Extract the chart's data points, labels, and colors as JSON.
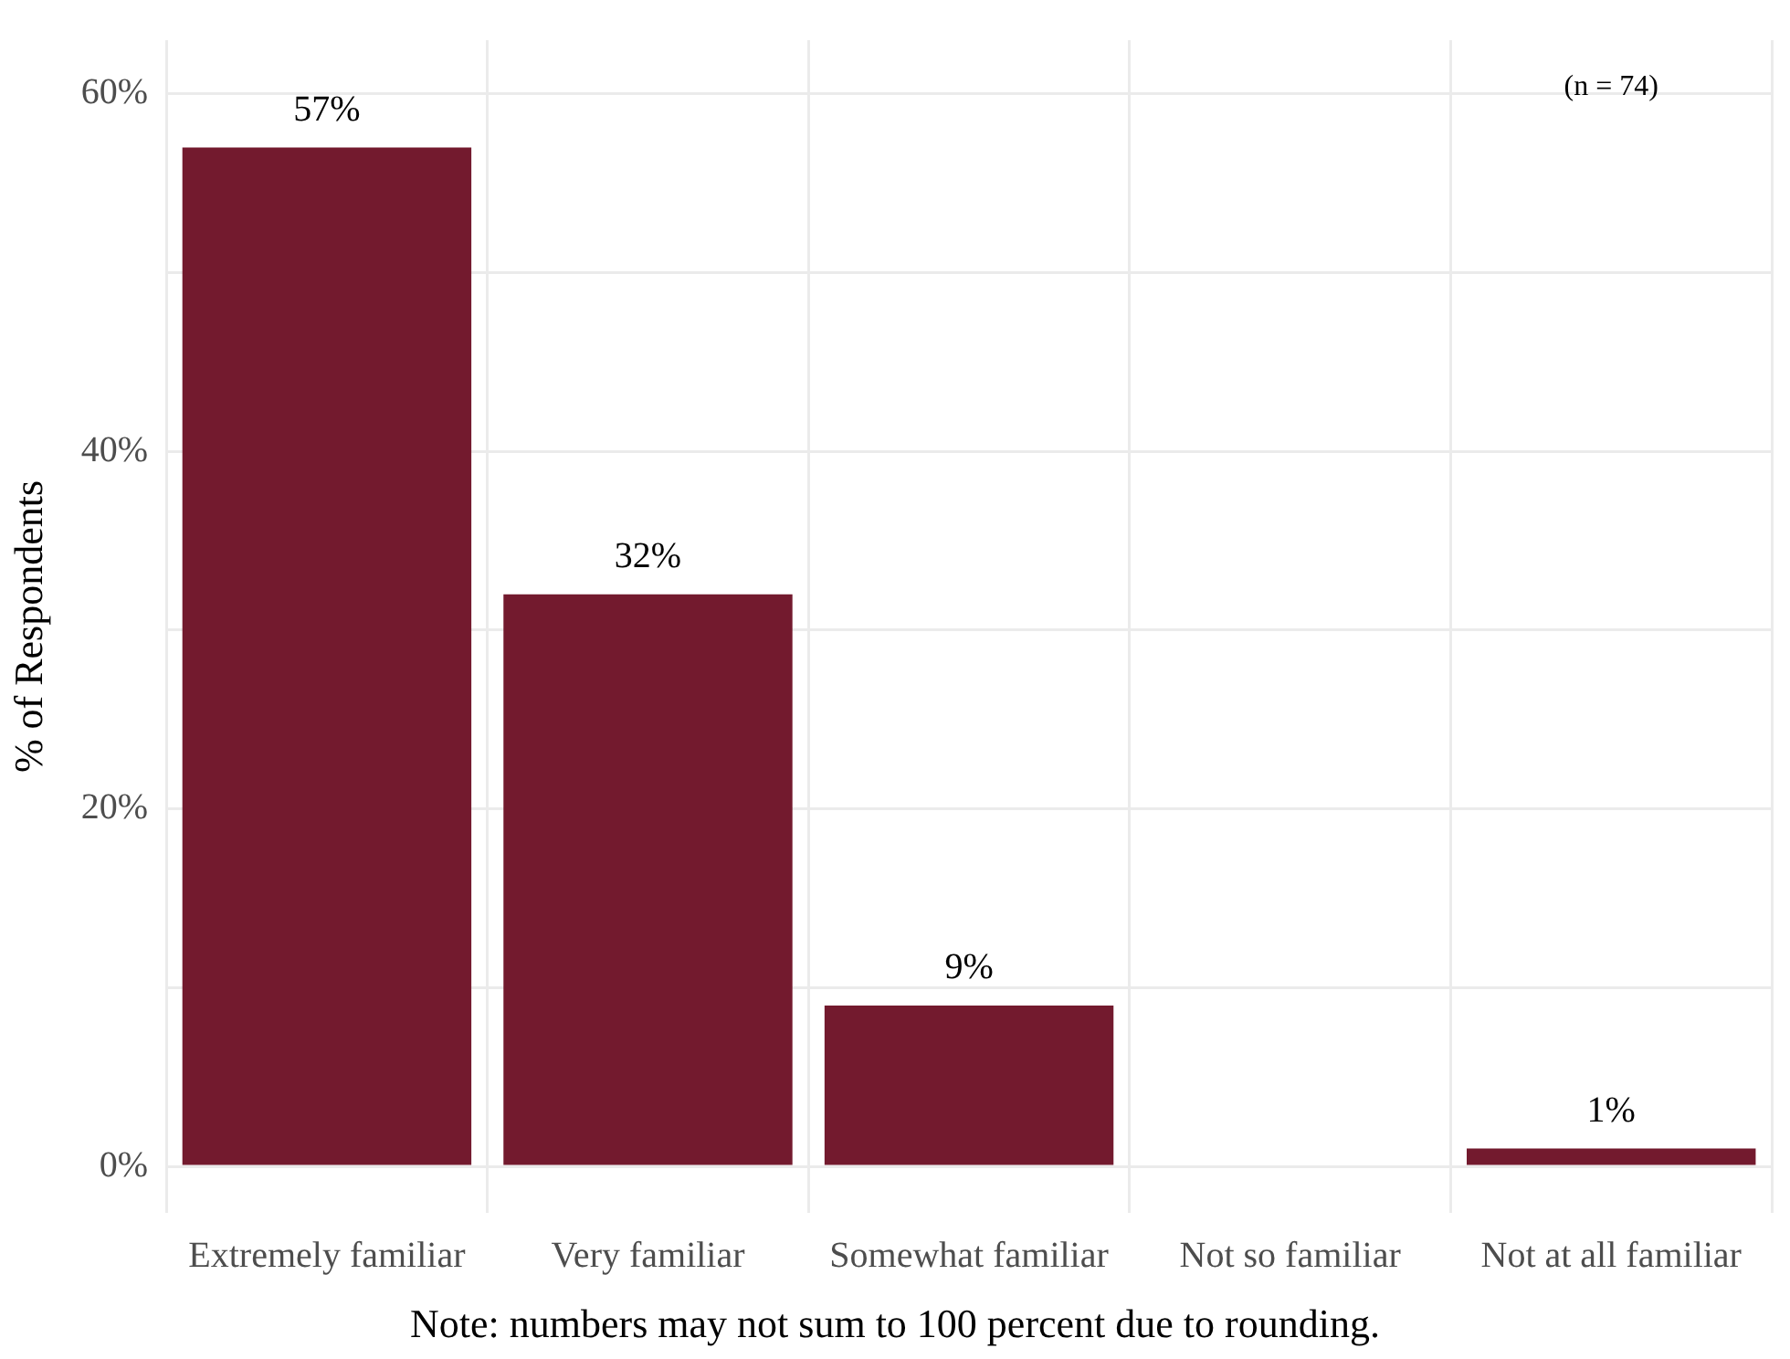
{
  "chart_data": {
    "type": "bar",
    "ylabel": "% of Respondents",
    "categories": [
      "Extremely familiar",
      "Very familiar",
      "Somewhat familiar",
      "Not so familiar",
      "Not at all familiar"
    ],
    "values": [
      57,
      32,
      9,
      0,
      1
    ],
    "color": "#731a2e",
    "value_labels": [
      "57%",
      "32%",
      "9%",
      null,
      "1%"
    ],
    "ylim": [
      -2.6,
      63
    ],
    "yticks": [
      {
        "value": 0,
        "label": "0%"
      },
      {
        "value": 10,
        "label": null
      },
      {
        "value": 20,
        "label": "20%"
      },
      {
        "value": 30,
        "label": null
      },
      {
        "value": 40,
        "label": "40%"
      },
      {
        "value": 50,
        "label": null
      },
      {
        "value": 60,
        "label": "60%"
      }
    ],
    "grid": true,
    "annotations": [
      "(n = 74)",
      "Note: numbers may not sum to 100 percent due to rounding."
    ]
  }
}
